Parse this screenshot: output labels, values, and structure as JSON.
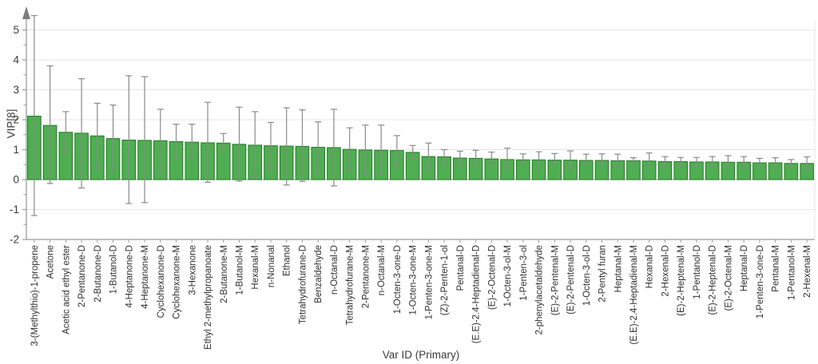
{
  "chart_data": {
    "type": "bar",
    "title": "",
    "xlabel": "Var ID (Primary)",
    "ylabel": "VIP[8]",
    "ylim": [
      -2,
      5.6
    ],
    "yticks": [
      -2,
      -1,
      0,
      1,
      2,
      3,
      4,
      5
    ],
    "grid": true,
    "legend": "none",
    "categories": [
      "3-(Methylthio)-1-propene",
      "Acetone",
      "Acetic acid ethyl ester",
      "2-Pentanone-D",
      "2-Butanone-D",
      "1-Butanol-D",
      "4-Heptanone-D",
      "4-Heptanone-M",
      "Cyclohexanone-D",
      "Cyclohexanone-M",
      "3-Hexanone",
      "Ethyl 2-methylpropanoate",
      "2-Butanone-M",
      "1-Butanol-M",
      "Hexanal-M",
      "n-Nonanal",
      "Ethanol",
      "Tetrahydrofurane-D",
      "Benzaldehyde",
      "n-Octanal-D",
      "Tetrahydrofurane-M",
      "2-Pentanone-M",
      "n-Octanal-M",
      "1-Octen-3-one-D",
      "1-Octen-3-one-M",
      "1-Penten-3-one-M",
      "(Z)-2-Penten-1-ol",
      "Pentanal-D",
      "(E.E)-2.4-Heptadienal-D",
      "(E)-2-Octenal-D",
      "1-Octen-3-ol-M",
      "1-Penten-3-ol",
      "2-phenylacetaldehyde",
      "(E)-2-Pentenal-M",
      "(E)-2-Pentenal-D",
      "1-Octen-3-ol-D",
      "2-Pentyl furan",
      "Heptanal-M",
      "(E.E)-2.4-Heptadienal-M",
      "Hexanal-D",
      "2-Hexenal-D",
      "(E)-2-Heptenal-M",
      "1-Pentanol-D",
      "(E)-2-Heptenal-D",
      "(E)-2-Octenal-M",
      "Heptanal-D",
      "1-Penten-3-one-D",
      "Pentanal-M",
      "1-Pentanol-M",
      "2-Hexenal-M"
    ],
    "values": [
      2.12,
      1.81,
      1.58,
      1.55,
      1.46,
      1.37,
      1.32,
      1.31,
      1.3,
      1.27,
      1.25,
      1.23,
      1.22,
      1.18,
      1.15,
      1.13,
      1.12,
      1.11,
      1.08,
      1.07,
      1.01,
      0.99,
      0.98,
      0.97,
      0.91,
      0.77,
      0.76,
      0.72,
      0.71,
      0.69,
      0.67,
      0.66,
      0.66,
      0.65,
      0.65,
      0.64,
      0.64,
      0.63,
      0.63,
      0.62,
      0.6,
      0.6,
      0.59,
      0.59,
      0.58,
      0.58,
      0.56,
      0.56,
      0.54,
      0.54
    ],
    "error_low": [
      -1.2,
      -0.13,
      0.9,
      -0.28,
      0.38,
      0.3,
      -0.8,
      -0.77,
      0.27,
      0.69,
      0.67,
      -0.09,
      0.93,
      -0.05,
      0.07,
      0.35,
      -0.18,
      -0.06,
      0.24,
      -0.21,
      0.31,
      0.18,
      0.15,
      0.49,
      0.71,
      0.33,
      0.53,
      0.47,
      0.49,
      0.53,
      0.38,
      0.56,
      0.4,
      0.55,
      0.38,
      0.53,
      0.47,
      0.45,
      0.55,
      0.4,
      0.45,
      0.47,
      0.47,
      0.42,
      0.4,
      0.39,
      0.42,
      0.4,
      0.42,
      0.35
    ],
    "error_high": [
      5.48,
      3.8,
      2.27,
      3.37,
      2.55,
      2.49,
      3.47,
      3.44,
      2.35,
      1.85,
      1.85,
      2.58,
      1.54,
      2.42,
      2.27,
      1.91,
      2.4,
      2.33,
      1.93,
      2.35,
      1.73,
      1.82,
      1.82,
      1.47,
      1.14,
      1.22,
      1.0,
      0.95,
      0.98,
      0.92,
      1.05,
      0.86,
      0.93,
      0.87,
      0.96,
      0.85,
      0.86,
      0.85,
      0.73,
      0.89,
      0.77,
      0.74,
      0.74,
      0.77,
      0.8,
      0.77,
      0.71,
      0.73,
      0.67,
      0.76
    ],
    "colors": {
      "bar_fill": "#4fae51",
      "bar_border": "#1f7a22",
      "error_bar": "#8a8a8a",
      "grid": "#e5e5e5",
      "axis": "#9b9b9b",
      "arrow": "#7d7d7d",
      "tick_text": "#3a3a3a",
      "category_text": "#2e2e2e"
    }
  }
}
